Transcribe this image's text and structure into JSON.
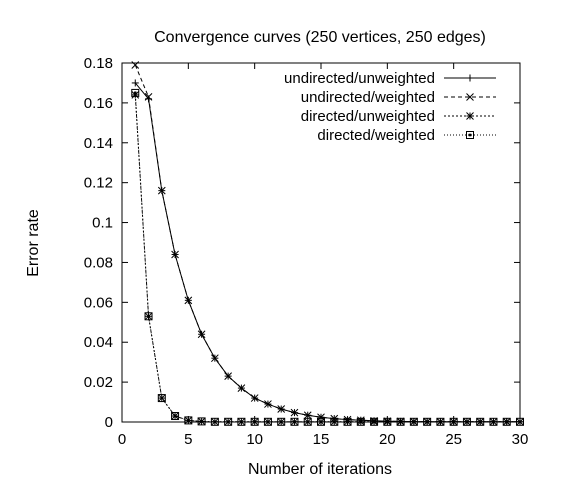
{
  "chart_data": {
    "type": "line",
    "title": "Convergence curves (250 vertices, 250 edges)",
    "xlabel": "Number of iterations",
    "ylabel": "Error rate",
    "xlim": [
      0,
      30
    ],
    "ylim": [
      0,
      0.18
    ],
    "xticks": [
      "0",
      "5",
      "10",
      "15",
      "20",
      "25",
      "30"
    ],
    "yticks": [
      "0",
      "0.02",
      "0.04",
      "0.06",
      "0.08",
      "0.1",
      "0.12",
      "0.14",
      "0.16",
      "0.18"
    ],
    "grid": false,
    "legend_position": "top-right",
    "x": [
      1,
      2,
      3,
      4,
      5,
      6,
      7,
      8,
      9,
      10,
      11,
      12,
      13,
      14,
      15,
      16,
      17,
      18,
      19,
      20,
      21,
      22,
      23,
      24,
      25,
      26,
      27,
      28,
      29,
      30
    ],
    "series": [
      {
        "name": "undirected/unweighted",
        "line_style": "solid",
        "marker": "plus",
        "values": [
          0.17,
          0.162,
          0.116,
          0.084,
          0.061,
          0.044,
          0.032,
          0.023,
          0.017,
          0.012,
          0.009,
          0.0065,
          0.0047,
          0.0034,
          0.0024,
          0.0017,
          0.0012,
          0.0009,
          0.0006,
          0.0004,
          0.0003,
          0.0002,
          0.00015,
          0.0001,
          0.0001,
          0.0001,
          0.0001,
          0.0001,
          0.0001,
          0.0001
        ]
      },
      {
        "name": "undirected/weighted",
        "line_style": "dashed",
        "marker": "x",
        "values": [
          0.179,
          0.163,
          0.116,
          0.084,
          0.061,
          0.044,
          0.032,
          0.023,
          0.017,
          0.012,
          0.009,
          0.0065,
          0.0047,
          0.0034,
          0.0024,
          0.0017,
          0.0012,
          0.0009,
          0.0006,
          0.0004,
          0.0003,
          0.0002,
          0.00015,
          0.0001,
          0.0001,
          0.0001,
          0.0001,
          0.0001,
          0.0001,
          0.0001
        ]
      },
      {
        "name": "directed/unweighted",
        "line_style": "dotted",
        "marker": "star",
        "values": [
          0.164,
          0.053,
          0.012,
          0.003,
          0.0008,
          0.0003,
          0.0001,
          0.0001,
          0.0001,
          0.0001,
          0.0001,
          0.0001,
          0.0001,
          0.0001,
          0.0001,
          0.0001,
          0.0001,
          0.0001,
          0.0001,
          0.0001,
          0.0001,
          0.0001,
          0.0001,
          0.0001,
          0.0001,
          0.0001,
          0.0001,
          0.0001,
          0.0001,
          0.0001
        ]
      },
      {
        "name": "directed/weighted",
        "line_style": "fine-dotted",
        "marker": "box",
        "values": [
          0.165,
          0.053,
          0.012,
          0.003,
          0.0008,
          0.0003,
          0.0001,
          0.0001,
          0.0001,
          0.0001,
          0.0001,
          0.0001,
          0.0001,
          0.0001,
          0.0001,
          0.0001,
          0.0001,
          0.0001,
          0.0001,
          0.0001,
          0.0001,
          0.0001,
          0.0001,
          0.0001,
          0.0001,
          0.0001,
          0.0001,
          0.0001,
          0.0001,
          0.0001
        ]
      }
    ]
  }
}
